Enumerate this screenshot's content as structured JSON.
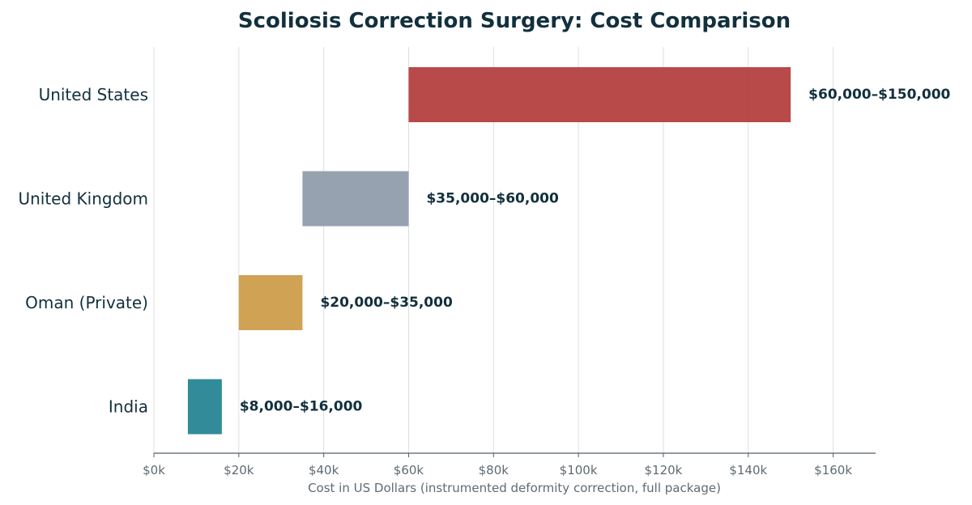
{
  "chart_data": {
    "type": "bar",
    "orientation": "horizontal-range",
    "title": "Scoliosis Correction Surgery: Cost Comparison",
    "xlabel": "Cost in US Dollars (instrumented deformity correction, full package)",
    "ylabel": "",
    "xlim": [
      0,
      170000
    ],
    "xticks": [
      0,
      20000,
      40000,
      60000,
      80000,
      100000,
      120000,
      140000,
      160000
    ],
    "xtick_labels": [
      "$0k",
      "$20k",
      "$40k",
      "$60k",
      "$80k",
      "$100k",
      "$120k",
      "$140k",
      "$160k"
    ],
    "grid": "vertical",
    "legend": "none",
    "categories": [
      "United States",
      "United Kingdom",
      "Oman (Private)",
      "India"
    ],
    "ranges": [
      {
        "category": "United States",
        "low": 60000,
        "high": 150000,
        "label": "$60,000–$150,000",
        "color": "#b23b3b"
      },
      {
        "category": "United Kingdom",
        "low": 35000,
        "high": 60000,
        "label": "$35,000–$60,000",
        "color": "#8e9aaa"
      },
      {
        "category": "Oman (Private)",
        "low": 20000,
        "high": 35000,
        "label": "$20,000–$35,000",
        "color": "#cc9a45"
      },
      {
        "category": "India",
        "low": 8000,
        "high": 16000,
        "label": "$8,000–$16,000",
        "color": "#1f8190"
      }
    ]
  }
}
